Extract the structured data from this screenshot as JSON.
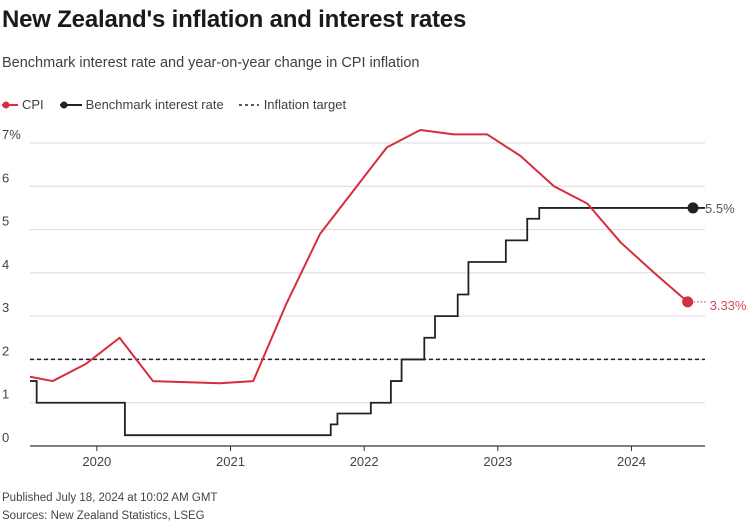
{
  "title": "New Zealand's inflation and interest rates",
  "subtitle": "Benchmark interest rate and year-on-year change in CPI inflation",
  "legend": {
    "cpi": "CPI",
    "rate": "Benchmark interest rate",
    "target": "Inflation target"
  },
  "footer": {
    "published": "Published July 18, 2024 at 10:02 AM GMT",
    "sources": "Sources: New Zealand Statistics, LSEG"
  },
  "colors": {
    "cpi": "#d62e3c",
    "rate": "#222222",
    "target": "#222222",
    "grid": "#d9d9d9",
    "axis": "#333333",
    "cpi_label": "#d64a5a",
    "rate_label": "#555555"
  },
  "chart_data": {
    "type": "line",
    "title": "New Zealand's inflation and interest rates",
    "subtitle": "Benchmark interest rate and year-on-year change in CPI inflation",
    "xlabel": "",
    "ylabel": "",
    "xlim": [
      2019.5,
      2024.55
    ],
    "ylim": [
      0,
      7
    ],
    "x_ticks": [
      2020,
      2021,
      2022,
      2023,
      2024
    ],
    "x_tick_labels": [
      "2020",
      "2021",
      "2022",
      "2023",
      "2024"
    ],
    "y_ticks": [
      0,
      1,
      2,
      3,
      4,
      5,
      6,
      7
    ],
    "y_tick_labels": [
      "0",
      "1",
      "2",
      "3",
      "4",
      "5",
      "6",
      "7%"
    ],
    "grid": "horizontal",
    "legend_position": "top-left",
    "series": [
      {
        "name": "CPI",
        "style": "line",
        "color": "#d62e3c",
        "points": [
          [
            2019.5,
            1.6
          ],
          [
            2019.67,
            1.5
          ],
          [
            2019.92,
            1.9
          ],
          [
            2020.17,
            2.5
          ],
          [
            2020.42,
            1.5
          ],
          [
            2020.92,
            1.45
          ],
          [
            2021.17,
            1.5
          ],
          [
            2021.42,
            3.3
          ],
          [
            2021.67,
            4.9
          ],
          [
            2021.92,
            5.9
          ],
          [
            2022.17,
            6.9
          ],
          [
            2022.42,
            7.3
          ],
          [
            2022.67,
            7.2
          ],
          [
            2022.92,
            7.2
          ],
          [
            2023.17,
            6.7
          ],
          [
            2023.42,
            6.0
          ],
          [
            2023.67,
            5.6
          ],
          [
            2023.92,
            4.7
          ],
          [
            2024.17,
            4.0
          ],
          [
            2024.42,
            3.33
          ]
        ],
        "end_label": "3.33%"
      },
      {
        "name": "Benchmark interest rate",
        "style": "step",
        "color": "#222222",
        "points": [
          [
            2019.5,
            1.5
          ],
          [
            2019.55,
            1.0
          ],
          [
            2020.21,
            0.25
          ],
          [
            2021.75,
            0.5
          ],
          [
            2021.8,
            0.75
          ],
          [
            2022.05,
            1.0
          ],
          [
            2022.2,
            1.5
          ],
          [
            2022.28,
            2.0
          ],
          [
            2022.45,
            2.5
          ],
          [
            2022.53,
            3.0
          ],
          [
            2022.7,
            3.5
          ],
          [
            2022.78,
            4.25
          ],
          [
            2023.06,
            4.75
          ],
          [
            2023.22,
            5.25
          ],
          [
            2023.31,
            5.5
          ],
          [
            2024.55,
            5.5
          ]
        ],
        "end_label": "5.5%"
      },
      {
        "name": "Inflation target",
        "style": "dashed",
        "color": "#222222",
        "points": [
          [
            2019.5,
            2
          ],
          [
            2024.55,
            2
          ]
        ]
      }
    ]
  }
}
